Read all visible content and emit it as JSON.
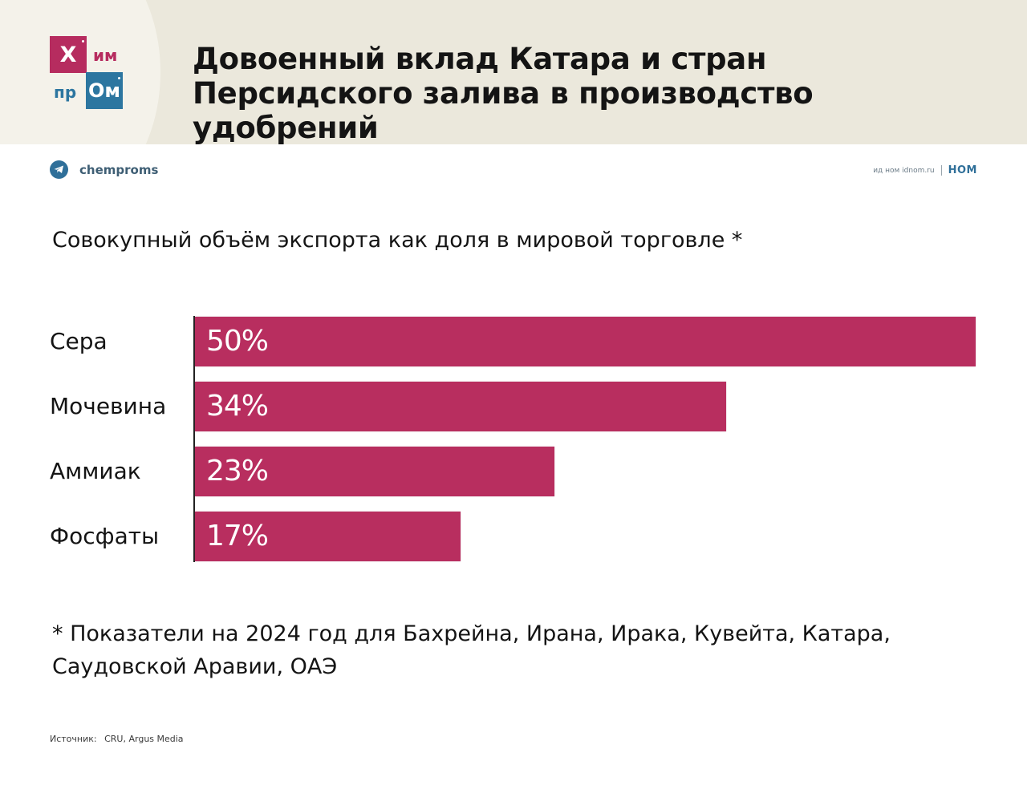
{
  "header": {
    "logo": {
      "square1": "Х",
      "text1": "им",
      "text2": "пр",
      "square2": "Ом"
    },
    "title": "Довоенный вклад Катара и стран Персидского залива в производство удобрений"
  },
  "social": {
    "telegram_handle": "chemproms",
    "brand_small": "ид ном idnom.ru",
    "brand_big": "НОМ"
  },
  "colors": {
    "bar": "#b82e5f",
    "logo_red": "#b62c5f",
    "logo_blue": "#2c76a0",
    "header_bg": "#ebe8dc"
  },
  "chart_data": {
    "type": "bar",
    "orientation": "horizontal",
    "title": "Совокупный объём экспорта как доля в мировой торговле *",
    "categories": [
      "Сера",
      "Мочевина",
      "Аммиак",
      "Фосфаты"
    ],
    "values": [
      50,
      34,
      23,
      17
    ],
    "value_labels": [
      "50%",
      "34%",
      "23%",
      "17%"
    ],
    "unit": "%",
    "xlabel": "",
    "ylabel": "",
    "xlim": [
      0,
      50
    ],
    "grid": false,
    "legend": "none"
  },
  "footnote": "* Показатели на 2024 год для Бахрейна, Ирана, Ирака, Кувейта, Катара, Саудовской Аравии, ОАЭ",
  "source": {
    "label": "Источник:",
    "value": "CRU, Argus Media"
  }
}
